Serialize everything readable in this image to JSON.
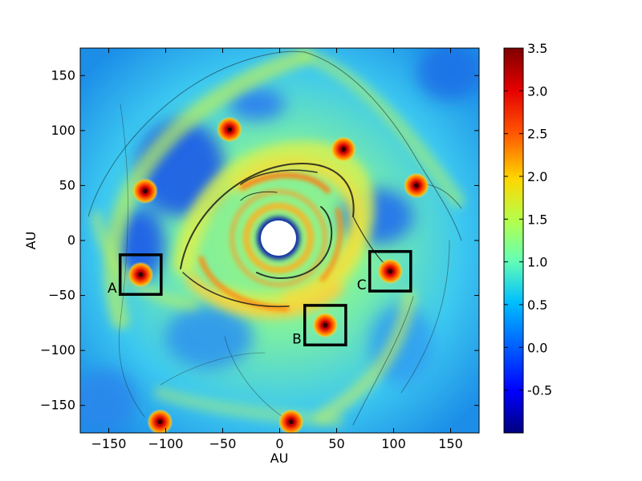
{
  "figure": {
    "x_axis_label": "AU",
    "y_axis_label": "AU",
    "x_ticks": [
      "−150",
      "−100",
      "−50",
      "0",
      "50",
      "100",
      "150"
    ],
    "y_ticks": [
      "150",
      "100",
      "50",
      "0",
      "−50",
      "−100",
      "−150"
    ],
    "x_tick_values": [
      -150,
      -100,
      -50,
      0,
      50,
      100,
      150
    ],
    "y_tick_values": [
      150,
      100,
      50,
      0,
      -50,
      -100,
      -150
    ],
    "xlim": [
      -175,
      175
    ],
    "ylim": [
      -175,
      175
    ],
    "colorbar_ticks": [
      "3.5",
      "3.0",
      "2.5",
      "2.0",
      "1.5",
      "1.0",
      "0.5",
      "0.0",
      "-0.5"
    ],
    "colorbar_tick_values": [
      3.5,
      3.0,
      2.5,
      2.0,
      1.5,
      1.0,
      0.5,
      0.0,
      -0.5
    ],
    "colorbar_range": [
      -1.0,
      3.5
    ],
    "colormap": "jet",
    "boxes": [
      {
        "label": "A",
        "center": [
          -122,
          -31
        ]
      },
      {
        "label": "B",
        "center": [
          40,
          -77
        ]
      },
      {
        "label": "C",
        "center": [
          97,
          -28
        ]
      }
    ],
    "clumps": [
      {
        "center": [
          -44,
          101
        ]
      },
      {
        "center": [
          -118,
          45
        ]
      },
      {
        "center": [
          56,
          83
        ]
      },
      {
        "center": [
          120,
          50
        ]
      },
      {
        "center": [
          -105,
          -165
        ]
      },
      {
        "center": [
          10,
          -165
        ]
      }
    ]
  }
}
